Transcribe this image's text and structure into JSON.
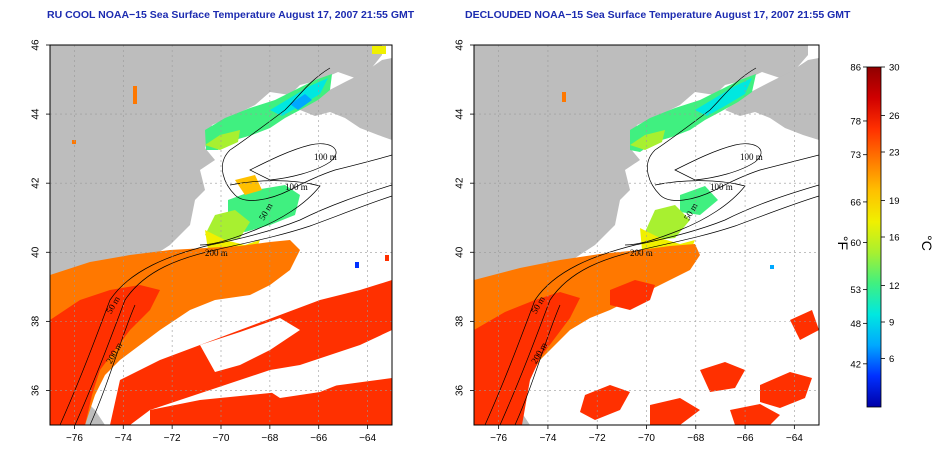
{
  "maps": [
    {
      "title": "RU COOL NOAA−15 Sea Surface Temperature August 17, 2007 21:55 GMT",
      "variant": "raw"
    },
    {
      "title": "DECLOUDED NOAA−15 Sea Surface Temperature August 17, 2007 21:55 GMT",
      "variant": "declouded"
    }
  ],
  "axes": {
    "lon_range": [
      -77,
      -63
    ],
    "lat_range": [
      35,
      46
    ],
    "x_ticks": [
      "−76",
      "−74",
      "−72",
      "−70",
      "−68",
      "−66",
      "−64"
    ],
    "x_values": [
      -76,
      -74,
      -72,
      -70,
      -68,
      -66,
      -64
    ],
    "y_ticks": [
      "36",
      "38",
      "40",
      "42",
      "44",
      "46"
    ],
    "y_values": [
      36,
      38,
      40,
      42,
      44,
      46
    ]
  },
  "contour_labels": [
    "100 m",
    "100 m",
    "50 m",
    "200 m",
    "50 m",
    "200 m"
  ],
  "colorbar": {
    "celsius_min": 2,
    "celsius_max": 30,
    "fahrenheit_ticks": [
      "86",
      "78",
      "73",
      "66",
      "60",
      "53",
      "48",
      "42"
    ],
    "fahrenheit_values": [
      86,
      78,
      73,
      66,
      60,
      53,
      48,
      42
    ],
    "celsius_ticks": [
      "30",
      "26",
      "23",
      "19",
      "16",
      "12",
      "9",
      "6"
    ],
    "celsius_values": [
      30,
      26,
      23,
      19,
      16,
      12,
      9,
      6
    ],
    "label_f": "°F",
    "label_c": "°C",
    "colors": [
      "#0000a8",
      "#0030ff",
      "#00a8ff",
      "#00e8e0",
      "#40f080",
      "#a8f030",
      "#f0f000",
      "#ffc000",
      "#ff7800",
      "#ff3000",
      "#d00000",
      "#900000"
    ]
  },
  "colors": {
    "land": "#bdbdbd",
    "cloud": "#ffffff",
    "grid": "#9a9a9a",
    "title": "#1c2bb0"
  }
}
